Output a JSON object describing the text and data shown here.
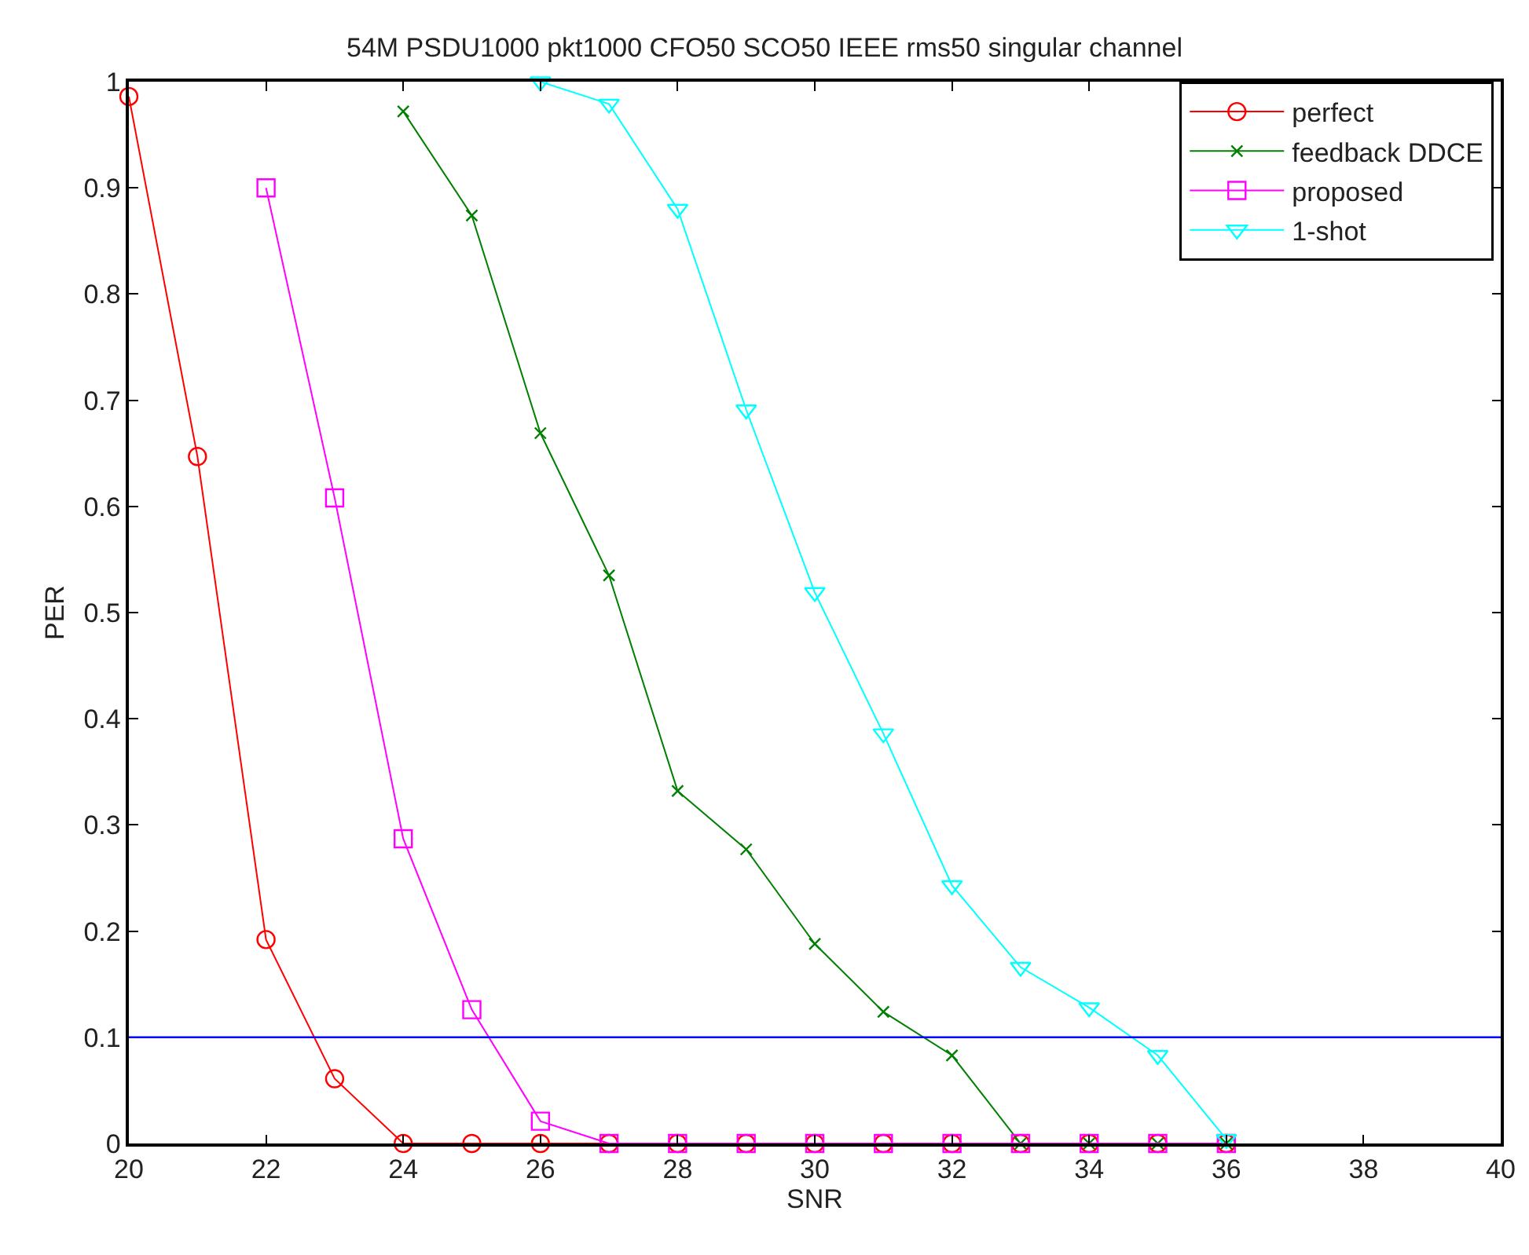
{
  "chart_data": {
    "type": "line",
    "title": "54M PSDU1000 pkt1000 CFO50 SCO50 IEEE rms50 singular channel",
    "xlabel": "SNR",
    "ylabel": "PER",
    "x": [
      20,
      21,
      22,
      23,
      24,
      25,
      26,
      27,
      28,
      29,
      30,
      31,
      32,
      33,
      34,
      35,
      36
    ],
    "series": [
      {
        "name": "perfect",
        "color": "#ff0000",
        "marker": "circle",
        "values": [
          0.986,
          0.647,
          0.192,
          0.061,
          0,
          0,
          0,
          0,
          0,
          0,
          0,
          0,
          0,
          0,
          0,
          0,
          0
        ]
      },
      {
        "name": "feedback DDCE",
        "color": "#008000",
        "marker": "cross",
        "values": [
          null,
          null,
          null,
          null,
          0.972,
          0.874,
          0.669,
          0.535,
          0.332,
          0.277,
          0.188,
          0.124,
          0.083,
          0,
          0,
          0,
          0
        ]
      },
      {
        "name": "proposed",
        "color": "#ff00ff",
        "marker": "square",
        "values": [
          null,
          null,
          0.9,
          0.608,
          0.287,
          0.126,
          0.021,
          0,
          0,
          0,
          0,
          0,
          0,
          0,
          0,
          0,
          0
        ]
      },
      {
        "name": "1-shot",
        "color": "#00ffff",
        "marker": "triangle",
        "values": [
          null,
          null,
          null,
          null,
          null,
          null,
          1.0,
          0.979,
          0.88,
          0.691,
          0.519,
          0.386,
          0.243,
          0.166,
          0.128,
          0.083,
          0.004
        ]
      }
    ],
    "ref_lines": [
      {
        "axis": "y",
        "value": 0.1,
        "color": "#0000ff"
      }
    ],
    "xlim": [
      20,
      40
    ],
    "xticks": [
      20,
      22,
      24,
      26,
      28,
      30,
      32,
      34,
      36,
      38,
      40
    ],
    "ylim": [
      0,
      1
    ],
    "yticks": [
      0,
      0.1,
      0.2,
      0.3,
      0.4,
      0.5,
      0.6,
      0.7,
      0.8,
      0.9,
      1
    ],
    "legend": "top right",
    "line_style": "solid"
  }
}
